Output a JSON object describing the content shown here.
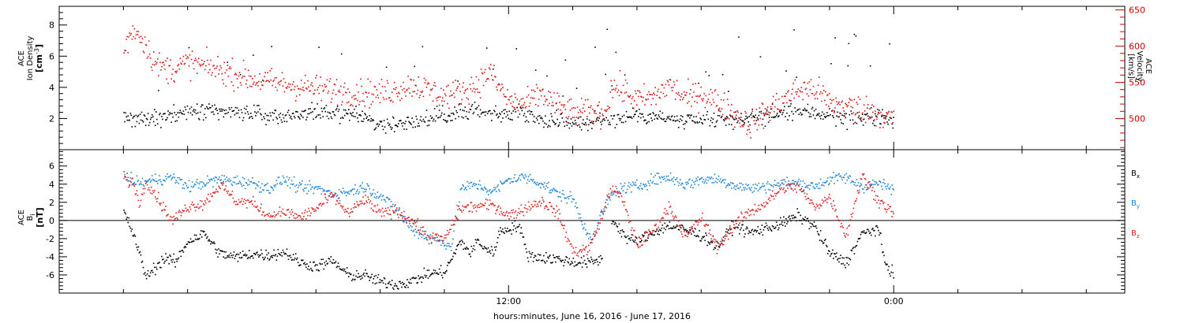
{
  "chart_data": [
    {
      "type": "scatter",
      "panel": "top",
      "left_axis": {
        "label_lines": [
          "ACE",
          "Ion Density"
        ],
        "unit": "[cm",
        "unit_sup": "-3",
        "unit_end": "]",
        "ticks": [
          2,
          4,
          6,
          8
        ],
        "ylim": [
          0,
          9.2
        ],
        "color": "#000000"
      },
      "right_axis": {
        "label_lines": [
          "ACE",
          "Velocity",
          "[km/s]"
        ],
        "ticks": [
          500,
          550,
          600,
          650
        ],
        "ylim": [
          457,
          655
        ],
        "color": "#cc0000"
      },
      "series": [
        {
          "axis": "left",
          "color": "#000000",
          "anchors": [
            [
              0,
              2.1
            ],
            [
              1,
              2.1
            ],
            [
              1.5,
              2.3
            ],
            [
              2,
              2.4
            ],
            [
              3,
              2.5
            ],
            [
              4,
              2.4
            ],
            [
              4.5,
              2.3
            ],
            [
              5,
              2.2
            ],
            [
              6,
              2.5
            ],
            [
              7,
              2.3
            ],
            [
              7.5,
              2.2
            ],
            [
              8,
              1.6
            ],
            [
              9,
              1.9
            ],
            [
              10,
              2.2
            ],
            [
              11,
              2.6
            ],
            [
              11.7,
              2.3
            ],
            [
              12,
              2.3
            ],
            [
              12.3,
              2.6
            ],
            [
              13,
              2.0
            ],
            [
              14,
              1.8
            ],
            [
              14.5,
              1.8
            ],
            [
              15,
              2.0
            ],
            [
              15.5,
              2.1
            ],
            [
              16,
              2.3
            ],
            [
              16.5,
              2.2
            ],
            [
              17,
              2.0
            ],
            [
              17.5,
              1.8
            ],
            [
              18,
              1.9
            ],
            [
              19,
              2.0
            ],
            [
              20,
              2.2
            ],
            [
              21,
              2.5
            ],
            [
              22,
              2.3
            ],
            [
              22.5,
              2.0
            ],
            [
              23,
              2.1
            ],
            [
              23.5,
              2.3
            ],
            [
              23.98,
              1.8
            ]
          ]
        },
        {
          "axis": "right",
          "color": "#dd1111",
          "anchors": [
            [
              0,
              595
            ],
            [
              0.3,
              625
            ],
            [
              0.6,
              610
            ],
            [
              1,
              575
            ],
            [
              1.5,
              568
            ],
            [
              2,
              578
            ],
            [
              3,
              568
            ],
            [
              4,
              555
            ],
            [
              5,
              548
            ],
            [
              6,
              542
            ],
            [
              7,
              538
            ],
            [
              8,
              535
            ],
            [
              9,
              548
            ],
            [
              10,
              532
            ],
            [
              10.5,
              538
            ],
            [
              11,
              548
            ],
            [
              11.4,
              565
            ],
            [
              11.6,
              550
            ],
            [
              12,
              525
            ],
            [
              12.5,
              520
            ],
            [
              13,
              535
            ],
            [
              13.5,
              518
            ],
            [
              14,
              508
            ],
            [
              15,
              510
            ],
            [
              15.2,
              545
            ],
            [
              15.5,
              540
            ],
            [
              16,
              527
            ],
            [
              16.5,
              530
            ],
            [
              17,
              548
            ],
            [
              17.5,
              528
            ],
            [
              18,
              535
            ],
            [
              18.5,
              524
            ],
            [
              19,
              508
            ],
            [
              19.5,
              492
            ],
            [
              20,
              510
            ],
            [
              20.5,
              525
            ],
            [
              21,
              540
            ],
            [
              21.3,
              542
            ],
            [
              21.6,
              540
            ],
            [
              22,
              522
            ],
            [
              23,
              515
            ],
            [
              23.98,
              500
            ]
          ]
        }
      ]
    },
    {
      "type": "scatter",
      "panel": "bottom",
      "left_axis": {
        "label_lines": [
          "ACE"
        ],
        "label_main": "B",
        "label_sub": "i",
        "unit": "[nT]",
        "ticks": [
          -6,
          -4,
          -2,
          0,
          2,
          4,
          6
        ],
        "ylim": [
          -8,
          7.8
        ],
        "color": "#000000"
      },
      "zero_line": true,
      "series": [
        {
          "name": "B",
          "sub": "x",
          "color": "#000000",
          "anchors": [
            [
              0,
              1.0
            ],
            [
              0.3,
              -1.5
            ],
            [
              0.7,
              -6.2
            ],
            [
              1,
              -5.0
            ],
            [
              1.3,
              -4.0
            ],
            [
              1.6,
              -4.6
            ],
            [
              2,
              -2.2
            ],
            [
              2.5,
              -1.4
            ],
            [
              3,
              -3.6
            ],
            [
              3.5,
              -4.0
            ],
            [
              4,
              -3.6
            ],
            [
              4.5,
              -3.8
            ],
            [
              5,
              -3.4
            ],
            [
              5.5,
              -4.6
            ],
            [
              6,
              -5.0
            ],
            [
              6.5,
              -4.4
            ],
            [
              7,
              -6.0
            ],
            [
              7.5,
              -6.0
            ],
            [
              8,
              -6.7
            ],
            [
              8.5,
              -7.0
            ],
            [
              9,
              -6.6
            ],
            [
              9.5,
              -5.8
            ],
            [
              10,
              -5.6
            ],
            [
              10.5,
              -2.2
            ],
            [
              10.8,
              -3.6
            ],
            [
              11,
              -2.2
            ],
            [
              11.2,
              -2.8
            ],
            [
              11.5,
              -3.6
            ],
            [
              11.7,
              -1.2
            ],
            [
              12,
              -0.8
            ],
            [
              12.3,
              -0.5
            ],
            [
              12.6,
              -3.8
            ],
            [
              13,
              -4.0
            ],
            [
              13.5,
              -4.2
            ],
            [
              14,
              -4.5
            ],
            [
              14.5,
              -4.6
            ],
            [
              14.9,
              -4.2
            ]
          ]
        },
        {
          "name": "B",
          "sub": "x",
          "color": "#000000",
          "anchors": [
            [
              15.2,
              0.2
            ],
            [
              15.7,
              -2.0
            ],
            [
              16,
              -2.3
            ],
            [
              16.5,
              -1.2
            ],
            [
              17,
              -0.5
            ],
            [
              17.5,
              -1.0
            ],
            [
              18,
              -1.6
            ],
            [
              18.5,
              -2.8
            ],
            [
              19,
              -0.4
            ],
            [
              19.5,
              -1.3
            ],
            [
              20,
              -0.8
            ],
            [
              20.5,
              -0.3
            ],
            [
              21,
              0.6
            ],
            [
              21.5,
              -0.5
            ],
            [
              22,
              -3.6
            ],
            [
              22.5,
              -4.6
            ],
            [
              23,
              -1.4
            ],
            [
              23.5,
              -0.8
            ],
            [
              23.7,
              -4.5
            ],
            [
              23.98,
              -5.8
            ]
          ]
        },
        {
          "name": "B",
          "sub": "y",
          "color": "#1c84d4",
          "anchors": [
            [
              0,
              4.6
            ],
            [
              0.5,
              4.2
            ],
            [
              1,
              4.6
            ],
            [
              1.5,
              4.8
            ],
            [
              2,
              3.8
            ],
            [
              3,
              4.6
            ],
            [
              4,
              4.2
            ],
            [
              4.5,
              3.6
            ],
            [
              5,
              4.6
            ],
            [
              5.5,
              3.6
            ],
            [
              6,
              3.6
            ],
            [
              6.5,
              3.0
            ],
            [
              7,
              3.2
            ],
            [
              7.5,
              3.8
            ],
            [
              8,
              2.8
            ],
            [
              8.5,
              1.2
            ],
            [
              9,
              -1.0
            ],
            [
              9.5,
              -1.8
            ],
            [
              10,
              -2.4
            ],
            [
              10.2,
              -2.8
            ],
            [
              10.5,
              3.6
            ],
            [
              11,
              4.0
            ],
            [
              11.5,
              3.2
            ],
            [
              12,
              4.6
            ],
            [
              12.5,
              4.8
            ],
            [
              13,
              4.2
            ],
            [
              13.5,
              3.0
            ],
            [
              14,
              2.4
            ],
            [
              14.3,
              -0.4
            ],
            [
              14.6,
              -2.0
            ],
            [
              14.9,
              1.0
            ],
            [
              15.2,
              2.8
            ],
            [
              15.5,
              3.6
            ],
            [
              16,
              3.8
            ],
            [
              16.5,
              4.6
            ],
            [
              17,
              4.8
            ],
            [
              17.5,
              4.0
            ],
            [
              18,
              4.6
            ],
            [
              18.5,
              4.6
            ],
            [
              19,
              4.0
            ],
            [
              19.5,
              3.6
            ],
            [
              20,
              3.8
            ],
            [
              20.5,
              4.2
            ],
            [
              21,
              4.2
            ],
            [
              21.5,
              3.8
            ],
            [
              22,
              4.6
            ],
            [
              22.5,
              4.8
            ],
            [
              23,
              3.8
            ],
            [
              23.5,
              4.2
            ],
            [
              23.98,
              3.4
            ]
          ]
        },
        {
          "name": "B",
          "sub": "z",
          "color": "#e02020",
          "anchors": [
            [
              0,
              5.0
            ],
            [
              0.3,
              4.0
            ],
            [
              0.5,
              2.0
            ],
            [
              0.7,
              4.5
            ],
            [
              1,
              2.8
            ],
            [
              1.5,
              0.0
            ],
            [
              2,
              1.6
            ],
            [
              2.5,
              2.0
            ],
            [
              3,
              4.0
            ],
            [
              3.5,
              2.2
            ],
            [
              4,
              2.0
            ],
            [
              4.5,
              0.6
            ],
            [
              5,
              1.0
            ],
            [
              5.5,
              0.4
            ],
            [
              6,
              1.4
            ],
            [
              6.5,
              2.8
            ],
            [
              7,
              0.8
            ],
            [
              7.5,
              2.4
            ],
            [
              8,
              0.8
            ],
            [
              8.5,
              1.2
            ],
            [
              9,
              0.0
            ],
            [
              9.5,
              -1.8
            ],
            [
              10,
              -2.0
            ],
            [
              10.5,
              1.4
            ],
            [
              11,
              1.6
            ],
            [
              11.5,
              1.8
            ],
            [
              12,
              0.6
            ],
            [
              12.5,
              1.4
            ],
            [
              13,
              2.2
            ],
            [
              13.5,
              1.0
            ],
            [
              14,
              -3.4
            ],
            [
              14.5,
              -3.0
            ],
            [
              14.9,
              0.6
            ],
            [
              15.2,
              3.8
            ],
            [
              15.5,
              2.6
            ],
            [
              16,
              -2.6
            ],
            [
              16.5,
              -1.0
            ],
            [
              17,
              1.6
            ],
            [
              17.5,
              -1.8
            ],
            [
              18,
              0.4
            ],
            [
              18.5,
              -3.0
            ],
            [
              19,
              -0.4
            ],
            [
              19.5,
              1.0
            ],
            [
              20,
              2.0
            ],
            [
              20.5,
              3.6
            ],
            [
              21,
              3.8
            ],
            [
              21.5,
              1.6
            ],
            [
              22,
              2.6
            ],
            [
              22.5,
              -1.6
            ],
            [
              23,
              5.0
            ],
            [
              23.5,
              2.4
            ],
            [
              23.98,
              0.8
            ]
          ]
        }
      ]
    }
  ],
  "x_axis": {
    "range_hours": [
      -2.0,
      31.2
    ],
    "labeled_ticks": [
      {
        "hour": 12,
        "label": "12:00"
      },
      {
        "hour": 24,
        "label": "0:00"
      }
    ],
    "minor_tick_step_hours": 2,
    "title": "hours:minutes, June 16, 2016 - June 17, 2016"
  }
}
